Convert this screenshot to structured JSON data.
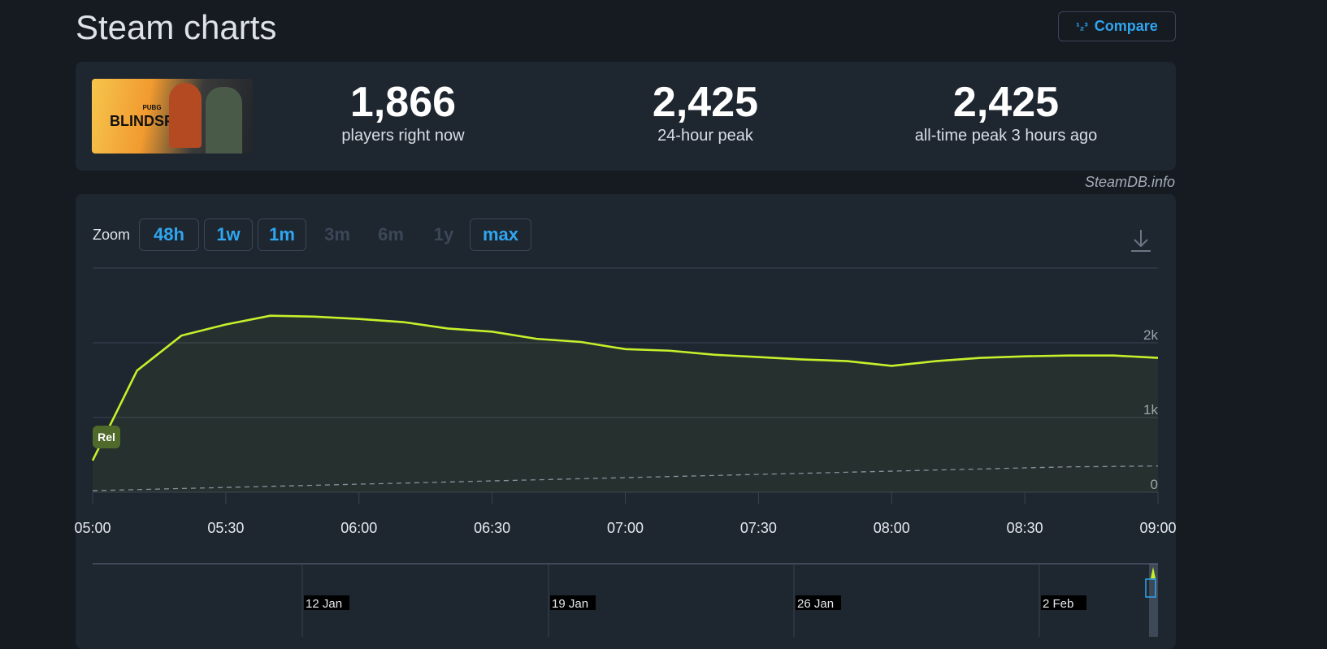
{
  "header": {
    "title": "Steam charts",
    "compare_label": "Compare",
    "compare_icon": "1/2 3"
  },
  "game": {
    "cover_logo_small": "PUBG",
    "cover_logo": "BLINDSPOT"
  },
  "stats": [
    {
      "value": "1,866",
      "label": "players right now"
    },
    {
      "value": "2,425",
      "label": "24-hour peak"
    },
    {
      "value": "2,425",
      "label": "all-time peak 3 hours ago"
    }
  ],
  "credit": "SteamDB.info",
  "zoom": {
    "label": "Zoom",
    "options": [
      {
        "label": "48h",
        "enabled": true
      },
      {
        "label": "1w",
        "enabled": true
      },
      {
        "label": "1m",
        "enabled": true
      },
      {
        "label": "3m",
        "enabled": false
      },
      {
        "label": "6m",
        "enabled": false
      },
      {
        "label": "1y",
        "enabled": false
      },
      {
        "label": "max",
        "enabled": true
      }
    ]
  },
  "chart_data": {
    "type": "line",
    "x": [
      "05:00",
      "05:10",
      "05:20",
      "05:30",
      "05:40",
      "05:50",
      "06:00",
      "06:10",
      "06:20",
      "06:30",
      "06:40",
      "06:50",
      "07:00",
      "07:10",
      "07:20",
      "07:30",
      "07:40",
      "07:50",
      "08:00",
      "08:10",
      "08:20",
      "08:30",
      "08:40",
      "08:50",
      "09:00"
    ],
    "series": [
      {
        "values": [
          425,
          1628,
          2096,
          2245,
          2362,
          2350,
          2319,
          2277,
          2191,
          2149,
          2053,
          2011,
          1915,
          1894,
          1840,
          1809,
          1777,
          1755,
          1691,
          1755,
          1798,
          1819,
          1830,
          1830,
          1798
        ],
        "color": "#c6f02b",
        "style": "solid-area"
      },
      {
        "values": [
          21,
          35,
          50,
          64,
          79,
          93,
          108,
          122,
          137,
          152,
          166,
          181,
          195,
          210,
          224,
          239,
          253,
          268,
          282,
          297,
          311,
          326,
          340,
          345,
          351
        ],
        "color": "#8a919b",
        "style": "dashed"
      }
    ],
    "xticks": [
      "05:00",
      "05:30",
      "06:00",
      "06:30",
      "07:00",
      "07:30",
      "08:00",
      "08:30",
      "09:00"
    ],
    "yticks": [
      "0",
      "1k",
      "2k"
    ],
    "ylim": [
      0,
      3000
    ],
    "grid": true,
    "annotation": "Rel",
    "navigator_labels": [
      "12 Jan",
      "19 Jan",
      "26 Jan",
      "2 Feb"
    ]
  }
}
